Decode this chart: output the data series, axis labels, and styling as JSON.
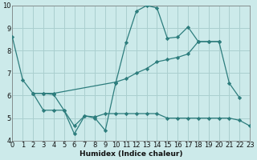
{
  "xlabel": "Humidex (Indice chaleur)",
  "bg_color": "#cceaea",
  "grid_color": "#aacfcf",
  "line_color": "#2d7d7d",
  "x_min": 0,
  "x_max": 23,
  "y_min": 4,
  "y_max": 10,
  "line1_x": [
    0,
    1,
    2,
    3,
    4,
    5,
    6,
    7,
    8,
    9,
    10,
    11,
    12,
    13,
    14,
    15,
    16,
    17,
    18,
    19,
    20,
    21,
    22
  ],
  "line1_y": [
    8.6,
    6.7,
    6.1,
    6.1,
    6.05,
    5.35,
    4.3,
    5.1,
    5.0,
    4.45,
    6.55,
    8.35,
    9.75,
    10.0,
    9.9,
    8.55,
    8.6,
    9.05,
    8.4,
    8.4,
    8.4,
    6.55,
    5.9
  ],
  "line2_x": [
    2,
    3,
    4,
    10,
    11,
    12,
    13,
    14,
    15,
    16,
    17,
    18,
    19,
    20
  ],
  "line2_y": [
    6.1,
    6.1,
    6.1,
    6.6,
    6.75,
    7.0,
    7.2,
    7.5,
    7.6,
    7.7,
    7.85,
    8.4,
    8.4,
    8.4
  ],
  "line3_x": [
    2,
    3,
    4,
    5,
    6,
    7,
    8,
    9,
    10,
    11,
    12,
    13,
    14,
    15,
    16,
    17,
    18,
    19,
    20,
    21,
    22,
    23
  ],
  "line3_y": [
    6.1,
    5.35,
    5.35,
    5.35,
    4.65,
    5.1,
    5.05,
    5.2,
    5.2,
    5.2,
    5.2,
    5.2,
    5.2,
    5.0,
    5.0,
    5.0,
    5.0,
    5.0,
    5.0,
    5.0,
    4.9,
    4.65
  ]
}
